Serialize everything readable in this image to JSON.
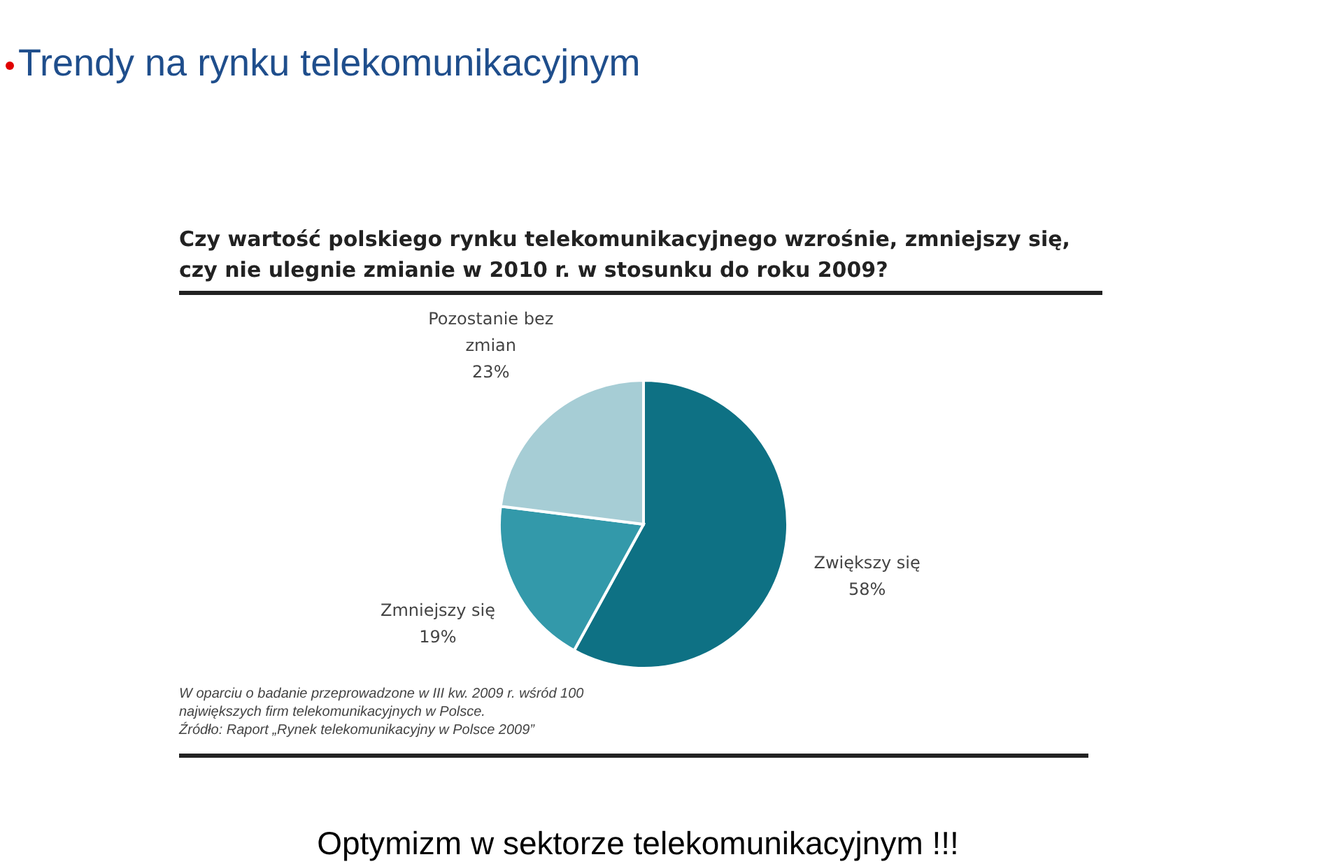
{
  "chart_data": {
    "type": "pie",
    "title": "Trendy na rynku telekomunikacyjnym",
    "subtitle": "Czy wartość polskiego rynku telekomunikacyjnego wzrośnie, zmniejszy się, czy nie ulegnie zmianie w 2010 r. w stosunku do roku 2009?",
    "categories": [
      "Zwiększy się",
      "Zmniejszy się",
      "Pozostanie bez zmian"
    ],
    "values": [
      58,
      19,
      23
    ],
    "value_labels": [
      "58%",
      "19%",
      "23%"
    ],
    "colors": [
      "#0e7184",
      "#3399aa",
      "#a6cdd5"
    ],
    "annotations": [
      "W oparciu o badanie przeprowadzone w III kw. 2009 r. wśród 100 największych firm telekomunikacyjnych w Polsce.",
      "Źródło: Raport „Rynek telekomunikacyjny w Polsce 2009”",
      "Optymizm w sektorze telekomunikacyjnym !!!"
    ]
  }
}
